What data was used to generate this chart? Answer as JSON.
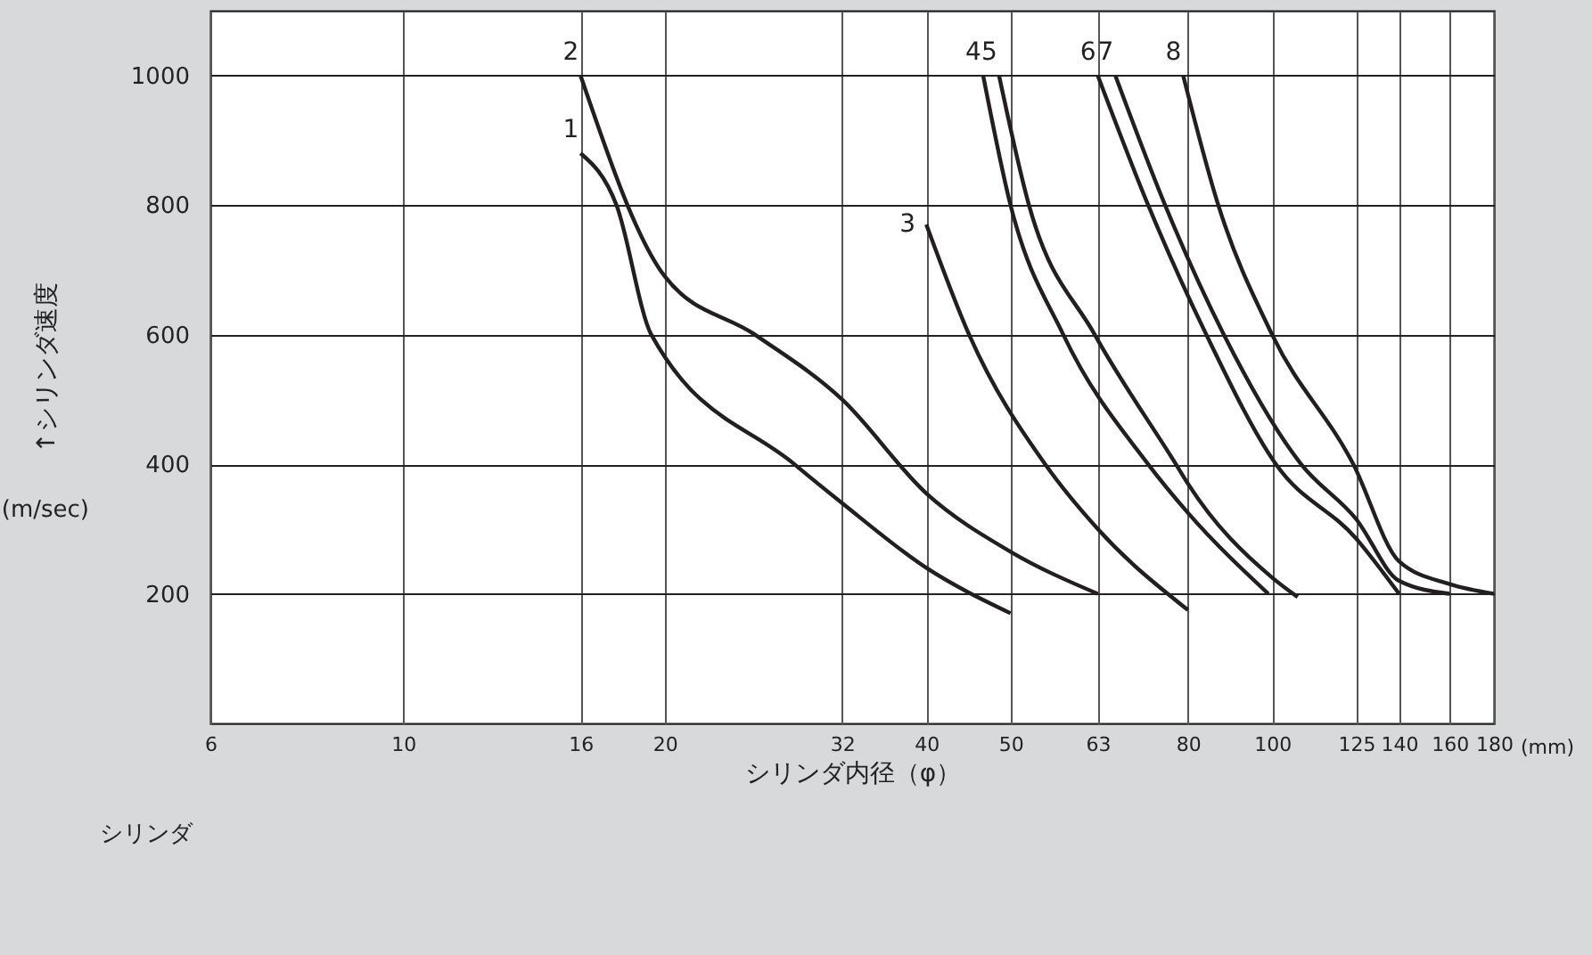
{
  "chart_data": {
    "type": "line",
    "xlabel": "シリンダ内径（φ）",
    "ylabel": "↑シリンダ速度",
    "annotations": [
      "(m/sec)",
      "(mm)",
      "シリンダ"
    ],
    "log": "x",
    "grid": true,
    "legend": false,
    "marker": "none",
    "line_style": "solid",
    "xlim": [
      6,
      180
    ],
    "xticks": [
      6,
      10,
      16,
      20,
      32,
      40,
      50,
      63,
      80,
      100,
      125,
      140,
      160,
      180
    ],
    "ylim": [
      0,
      1100
    ],
    "yticks": [
      200,
      400,
      600,
      800,
      1000
    ],
    "series": [
      {
        "name": "1",
        "color": "#231f20",
        "x": [
          16,
          17.6,
          19.3,
          28.2,
          32,
          40,
          50
        ],
        "values": [
          880,
          800,
          600,
          400,
          340,
          240,
          170
        ]
      },
      {
        "name": "2",
        "color": "#231f20",
        "x": [
          16,
          20,
          25.4,
          32,
          40,
          50,
          63
        ],
        "values": [
          1000,
          690,
          600,
          500,
          355,
          265,
          200
        ]
      },
      {
        "name": "3",
        "color": "#231f20",
        "x": [
          40,
          44.8,
          54.8,
          63,
          80
        ],
        "values": [
          770,
          600,
          400,
          300,
          175
        ]
      },
      {
        "name": "4",
        "color": "#231f20",
        "x": [
          46.5,
          50,
          57.5,
          72,
          80,
          99
        ],
        "values": [
          1000,
          800,
          600,
          400,
          325,
          200
        ]
      },
      {
        "name": "5",
        "color": "#231f20",
        "x": [
          48.5,
          52.5,
          62.5,
          77.5,
          80,
          100,
          107
        ],
        "values": [
          1000,
          800,
          600,
          400,
          370,
          225,
          195
        ]
      },
      {
        "name": "6",
        "color": "#231f20",
        "x": [
          63,
          72,
          84,
          101,
          125,
          140
        ],
        "values": [
          1000,
          800,
          600,
          400,
          285,
          200
        ]
      },
      {
        "name": "7",
        "color": "#231f20",
        "x": [
          66,
          75.3,
          88,
          108,
          125,
          140,
          160
        ],
        "values": [
          1000,
          800,
          600,
          400,
          315,
          220,
          200
        ]
      },
      {
        "name": "8",
        "color": "#231f20",
        "x": [
          79,
          86.7,
          100,
          124,
          140,
          160,
          180
        ],
        "values": [
          1000,
          800,
          600,
          400,
          250,
          215,
          200
        ]
      }
    ]
  }
}
